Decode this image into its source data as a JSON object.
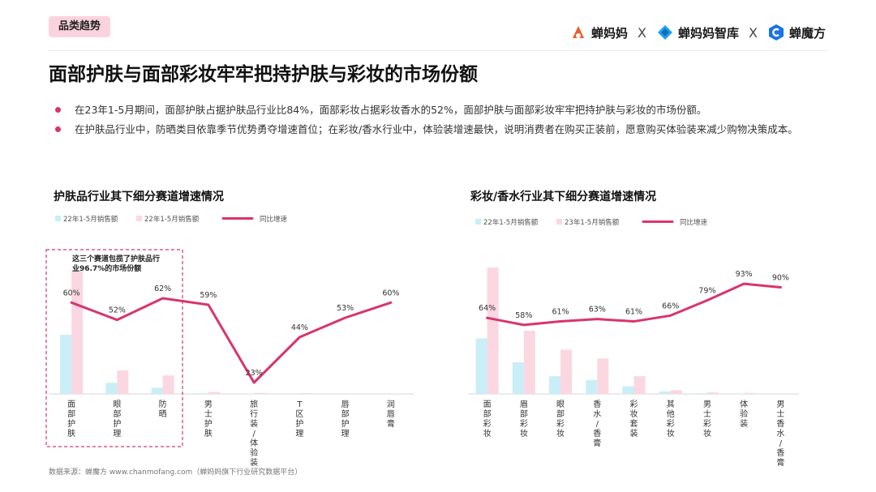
{
  "tag": "品类趋势",
  "logos": [
    {
      "name": "蝉妈妈",
      "color": "#f05a28"
    },
    {
      "name": "蝉妈妈智库",
      "color": "#1fa1f2"
    },
    {
      "name": "蝉魔方",
      "color": "#1b73e8"
    }
  ],
  "separator": "X",
  "title": "面部护肤与面部彩妆牢牢把持护肤与彩妆的市场份额",
  "bullets": [
    "在23年1-5月期间，面部护肤占据护肤品行业比84%，面部彩妆占据彩妆香水的52%，面部护肤与面部彩妆牢牢把持护肤与彩妆的市场份额。",
    "在护肤品行业中，防晒类目依靠季节优势勇夺增速首位；在彩妆/香水行业中，体验装增速最快，说明消费者在购买正装前，愿意购买体验装来减少购物决策成本。"
  ],
  "colors": {
    "bar22": "#c9eef7",
    "bar23": "#fbd7e1",
    "line": "#d9346f",
    "accent": "#d9346f"
  },
  "source": "数据来源：蝉魔方 www.chanmofang.com（蝉妈妈旗下行业研究数据平台）",
  "chart_data": [
    {
      "type": "bar",
      "title": "护肤品行业其下细分赛道增速情况",
      "legend": [
        "22年1-5月销售额",
        "22年1-5月销售额",
        "同比增速"
      ],
      "categories": [
        "面部护肤",
        "眼部护理",
        "防晒",
        "男士护肤",
        "旅行装/体验装",
        "T区护理",
        "唇部护理",
        "润唇膏"
      ],
      "series": [
        {
          "name": "22年1-5月销售额",
          "values": [
            48,
            9,
            5,
            0.6,
            0.3,
            0.2,
            0.1,
            0.1
          ]
        },
        {
          "name": "22年1-5月销售额",
          "values": [
            100,
            19,
            15,
            1.6,
            0.8,
            0.6,
            0.4,
            0.3
          ]
        },
        {
          "name": "同比增速",
          "type": "line",
          "values": [
            60,
            52,
            62,
            59,
            23,
            44,
            53,
            60
          ]
        }
      ],
      "data_labels": [
        "60%",
        "52%",
        "62%",
        "59%",
        "23%",
        "44%",
        "53%",
        "60%"
      ],
      "ylim": [
        0,
        100
      ],
      "line_ylim": [
        20,
        62
      ],
      "annotation": "这三个赛道包揽了护肤品行业96.7%的市场份额",
      "grid": false,
      "legend_position": "top-left"
    },
    {
      "type": "bar",
      "title": "彩妆/香水行业其下细分赛道增速情况",
      "legend": [
        "22年1-5月销售额",
        "23年1-5月销售额",
        "同比增速"
      ],
      "categories": [
        "面部彩妆",
        "眉部彩妆",
        "眼部彩妆",
        "香水/香膏",
        "彩妆套装",
        "其他彩妆",
        "男士彩妆",
        "体验装",
        "男士香水/香膏"
      ],
      "series": [
        {
          "name": "22年1-5月销售额",
          "values": [
            44,
            25,
            14,
            11,
            6,
            2,
            0.6,
            0.4,
            0.2
          ]
        },
        {
          "name": "23年1-5月销售额",
          "values": [
            100,
            50,
            35,
            28,
            14,
            3,
            1.2,
            0.8,
            0.4
          ]
        },
        {
          "name": "同比增速",
          "type": "line",
          "values": [
            64,
            58,
            61,
            63,
            61,
            66,
            79,
            93,
            90
          ]
        }
      ],
      "data_labels": [
        "64%",
        "58%",
        "61%",
        "63%",
        "61%",
        "66%",
        "79%",
        "93%",
        "90%"
      ],
      "ylim": [
        0,
        100
      ],
      "line_ylim": [
        0,
        100
      ],
      "grid": false,
      "legend_position": "top-left"
    }
  ]
}
